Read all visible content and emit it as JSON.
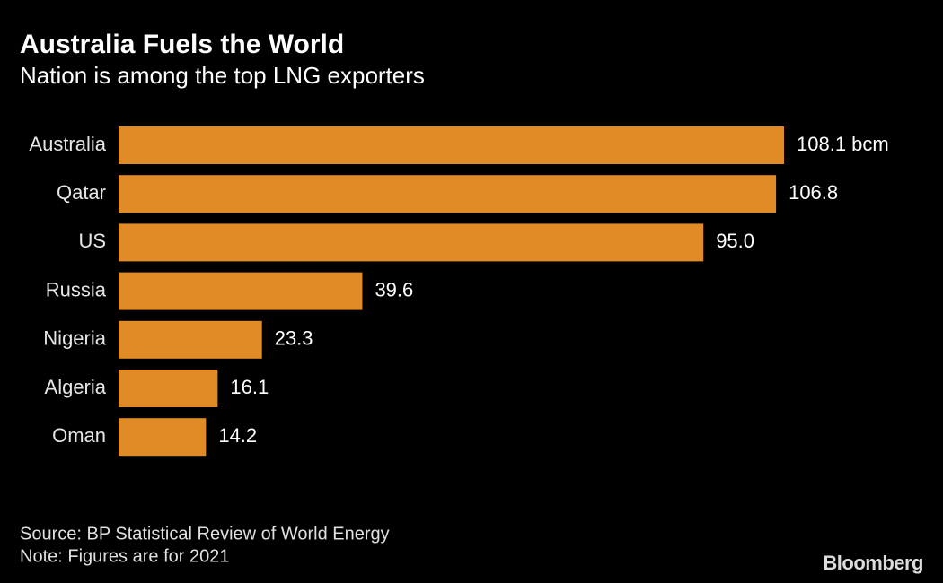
{
  "chart_data": {
    "type": "bar",
    "orientation": "horizontal",
    "title": "Australia Fuels the World",
    "subtitle": "Nation is among the top LNG exporters",
    "categories": [
      "Australia",
      "Qatar",
      "US",
      "Russia",
      "Nigeria",
      "Algeria",
      "Oman"
    ],
    "values": [
      108.1,
      106.8,
      95,
      39.6,
      23.3,
      16.1,
      14.2
    ],
    "value_labels": [
      "108.1 bcm",
      "106.8",
      "95.0",
      "39.6",
      "23.3",
      "16.1",
      "14.2"
    ],
    "color": "#e08b25",
    "source": "Source: BP Statistical Review of World Energy",
    "note": "Note: Figures are for 2021",
    "logo": "Bloomberg"
  }
}
